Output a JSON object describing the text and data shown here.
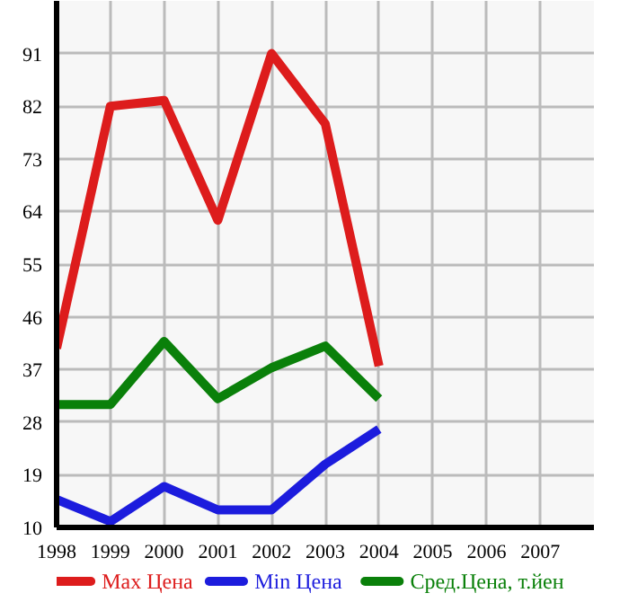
{
  "chart_data": {
    "type": "line",
    "x": [
      1998,
      1999,
      2000,
      2001,
      2002,
      2003,
      2004
    ],
    "series": [
      {
        "name": "Max Цена",
        "color": "#dd1c1c",
        "values": [
          40.6,
          82,
          83,
          62.5,
          91,
          79,
          37.6
        ]
      },
      {
        "name": "Min Цена",
        "color": "#1c1cdd",
        "values": [
          14.8,
          11,
          17,
          13,
          13,
          20.8,
          26.8
        ]
      },
      {
        "name": "Сред.Цена, т.йен",
        "color": "#0a800a",
        "values": [
          31,
          31,
          41.8,
          32,
          37.3,
          41,
          32
        ]
      }
    ],
    "xlim": [
      1998,
      2008
    ],
    "xticks": [
      1998,
      1999,
      2000,
      2001,
      2002,
      2003,
      2004,
      2005,
      2006,
      2007
    ],
    "ylim": [
      10,
      100
    ],
    "yticks": [
      10,
      19,
      28,
      37,
      46,
      55,
      64,
      73,
      82,
      91
    ],
    "grid": true,
    "legend": "bottom",
    "marker": "none",
    "line_style": "solid"
  }
}
